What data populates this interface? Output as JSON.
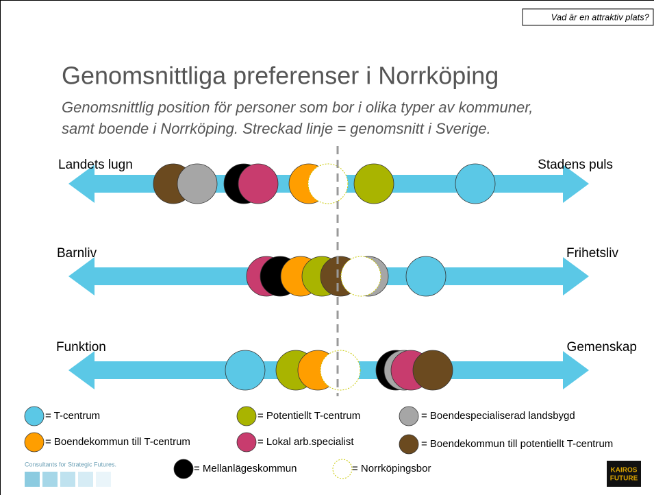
{
  "header": {
    "tag": "Vad är en attraktiv plats?"
  },
  "title": "Genomsnittliga preferenser i Norrköping",
  "subtitle": [
    "Genomsnittlig position för personer som bor i olika typer av kommuner,",
    "samt boende i Norrköping. Streckad linje = genomsnitt i Sverige."
  ],
  "axes": [
    {
      "left": "Landets lugn",
      "right": "Stadens puls"
    },
    {
      "left": "Barnliv",
      "right": "Frihetsliv"
    },
    {
      "left": "Funktion",
      "right": "Gemenskap"
    }
  ],
  "legend": [
    {
      "label": "= T-centrum"
    },
    {
      "label": "= Potentiellt T-centrum"
    },
    {
      "label": "= Boendespecialiserad landsbygd"
    },
    {
      "label": "= Boendekommun till T-centrum"
    },
    {
      "label": "= Lokal arb.specialist"
    },
    {
      "label": "= Boendekommun till potentiellt T-centrum"
    },
    {
      "label": "= Mellanlägeskommun"
    },
    {
      "label": "= Norrköpingsbor"
    }
  ],
  "footer": {
    "tagline": "Consultants for Strategic Futures.",
    "logo": [
      "KAIROS",
      "FUTURE"
    ]
  }
}
